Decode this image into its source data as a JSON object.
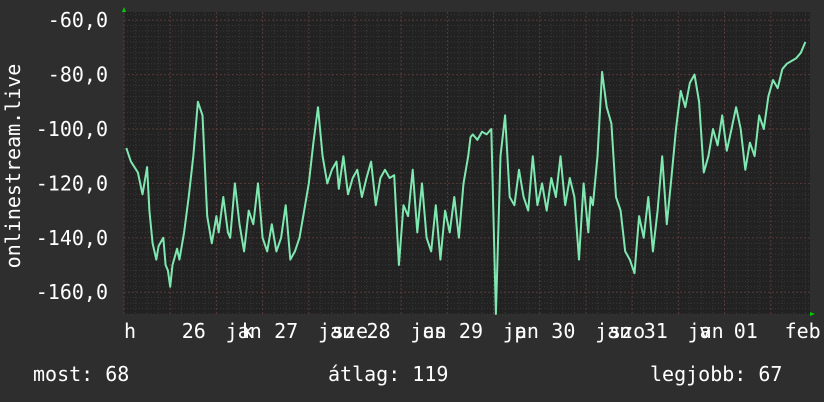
{
  "chart_data": {
    "type": "line",
    "ylabel": "onlinestream.live",
    "ylim": [
      -168,
      -57
    ],
    "y_ticks": [
      "-60,0",
      "-80,0",
      "-100,0",
      "-120,0",
      "-140,0",
      "-160,0"
    ],
    "y_tick_values": [
      -60,
      -80,
      -100,
      -120,
      -140,
      -160
    ],
    "x_ticks": [
      "h",
      "26",
      "jan",
      "k",
      "27",
      "jan",
      "sze",
      "28",
      "jan",
      "cs",
      "29",
      "jan",
      "p",
      "30",
      "jan",
      "szo",
      "31",
      "jan",
      "v",
      "01",
      "febr"
    ],
    "x_tick_positions": [
      0,
      1.25,
      2.2,
      2.55,
      3.25,
      4.2,
      4.5,
      5.25,
      6.2,
      6.45,
      7.25,
      8.2,
      8.45,
      9.25,
      10.2,
      10.5,
      11.25,
      12.2,
      12.45,
      13.2,
      14.3
    ],
    "xlim": [
      0,
      14.85
    ],
    "grid": true,
    "line_color": "#7ee8b0",
    "series": [
      {
        "x": [
          0.05,
          0.15,
          0.3,
          0.4,
          0.5,
          0.55,
          0.62,
          0.7,
          0.75,
          0.85,
          0.9,
          0.95,
          1.0,
          1.05,
          1.15,
          1.2,
          1.3,
          1.4,
          1.5,
          1.6,
          1.7,
          1.8,
          1.9,
          2.0,
          2.05,
          2.15,
          2.25,
          2.3,
          2.4,
          2.5,
          2.6,
          2.7,
          2.8,
          2.9,
          3.0,
          3.1,
          3.2,
          3.3,
          3.4,
          3.5,
          3.6,
          3.7,
          3.8,
          3.9,
          4.0,
          4.1,
          4.2,
          4.3,
          4.4,
          4.5,
          4.6,
          4.65,
          4.75,
          4.85,
          4.95,
          5.05,
          5.15,
          5.25,
          5.35,
          5.45,
          5.55,
          5.65,
          5.75,
          5.85,
          5.95,
          6.05,
          6.15,
          6.25,
          6.35,
          6.45,
          6.55,
          6.65,
          6.75,
          6.85,
          6.95,
          7.05,
          7.15,
          7.25,
          7.35,
          7.45,
          7.5,
          7.55,
          7.65,
          7.75,
          7.85,
          7.95,
          8.05,
          8.15,
          8.25,
          8.35,
          8.45,
          8.55,
          8.65,
          8.75,
          8.85,
          8.95,
          9.05,
          9.15,
          9.25,
          9.35,
          9.45,
          9.55,
          9.65,
          9.75,
          9.85,
          9.95,
          10.05,
          10.1,
          10.15,
          10.25,
          10.35,
          10.45,
          10.55,
          10.65,
          10.75,
          10.85,
          10.95,
          11.05,
          11.15,
          11.25,
          11.35,
          11.45,
          11.55,
          11.65,
          11.75,
          11.85,
          11.95,
          12.05,
          12.15,
          12.25,
          12.35,
          12.45,
          12.55,
          12.65,
          12.75,
          12.85,
          12.95,
          13.05,
          13.15,
          13.25,
          13.35,
          13.45,
          13.55,
          13.65,
          13.75,
          13.85,
          13.95,
          14.05,
          14.15,
          14.25,
          14.35,
          14.45,
          14.55,
          14.65,
          14.75
        ],
        "values": [
          -107,
          -112,
          -116,
          -124,
          -114,
          -130,
          -142,
          -148,
          -143,
          -140,
          -150,
          -152,
          -158,
          -150,
          -144,
          -148,
          -138,
          -125,
          -110,
          -90,
          -95,
          -132,
          -142,
          -132,
          -138,
          -125,
          -138,
          -140,
          -120,
          -135,
          -145,
          -130,
          -135,
          -120,
          -140,
          -145,
          -135,
          -145,
          -140,
          -128,
          -148,
          -145,
          -140,
          -130,
          -120,
          -105,
          -92,
          -110,
          -120,
          -115,
          -112,
          -122,
          -110,
          -124,
          -118,
          -115,
          -125,
          -118,
          -112,
          -128,
          -118,
          -115,
          -118,
          -117,
          -150,
          -128,
          -132,
          -115,
          -138,
          -120,
          -140,
          -145,
          -128,
          -148,
          -130,
          -138,
          -125,
          -140,
          -120,
          -110,
          -103,
          -102,
          -104,
          -101,
          -102,
          -100,
          -168,
          -110,
          -95,
          -125,
          -128,
          -115,
          -125,
          -130,
          -110,
          -128,
          -120,
          -130,
          -118,
          -125,
          -110,
          -128,
          -118,
          -125,
          -148,
          -120,
          -138,
          -125,
          -128,
          -110,
          -79,
          -92,
          -98,
          -125,
          -130,
          -145,
          -148,
          -153,
          -132,
          -140,
          -125,
          -145,
          -130,
          -110,
          -135,
          -118,
          -100,
          -86,
          -92,
          -83,
          -80,
          -90,
          -116,
          -110,
          -100,
          -106,
          -95,
          -108,
          -100,
          -92,
          -100,
          -115,
          -105,
          -110,
          -95,
          -100,
          -88,
          -82,
          -85,
          -78,
          -76,
          -75,
          -74,
          -72,
          -68
        ]
      }
    ]
  },
  "footer": {
    "current": "most: 68",
    "average": "átlag: 119",
    "best": "legjobb: 67"
  }
}
